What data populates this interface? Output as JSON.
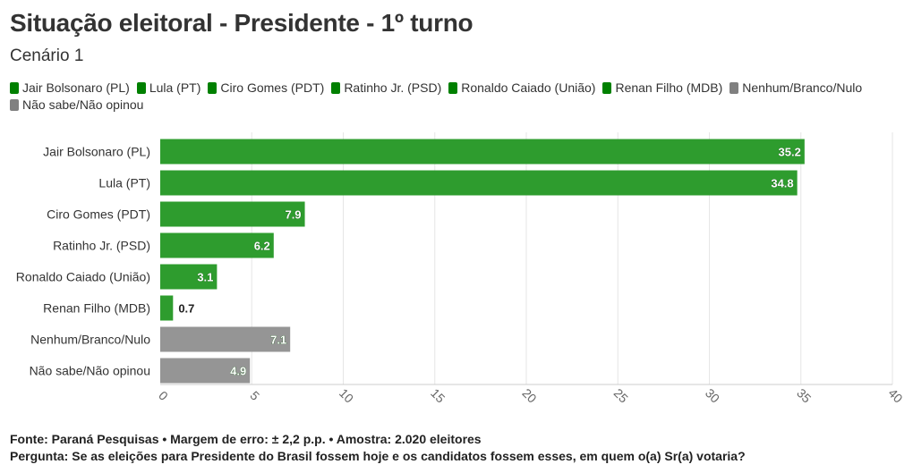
{
  "chart_data": {
    "type": "bar",
    "orientation": "horizontal",
    "title": "Situação eleitoral - Presidente - 1º turno",
    "subtitle": "Cenário 1",
    "categories": [
      "Jair Bolsonaro (PL)",
      "Lula (PT)",
      "Ciro Gomes (PDT)",
      "Ratinho Jr. (PSD)",
      "Ronaldo Caiado (União)",
      "Renan Filho (MDB)",
      "Nenhum/Branco/Nulo",
      "Não sabe/Não opinou"
    ],
    "values": [
      35.2,
      34.8,
      7.9,
      6.2,
      3.1,
      0.7,
      7.1,
      4.9
    ],
    "data_labels": [
      "35.2",
      "34.8",
      "7.9",
      "6.2",
      "3.1",
      "0.7",
      "7.1",
      "4.9"
    ],
    "bar_colors": [
      "#2e9c2e",
      "#2e9c2e",
      "#2e9c2e",
      "#2e9c2e",
      "#2e9c2e",
      "#2e9c2e",
      "#959595",
      "#959595"
    ],
    "legend": [
      {
        "label": "Jair Bolsonaro (PL)",
        "color": "#008000"
      },
      {
        "label": "Lula (PT)",
        "color": "#008000"
      },
      {
        "label": "Ciro Gomes (PDT)",
        "color": "#008000"
      },
      {
        "label": "Ratinho Jr. (PSD)",
        "color": "#008000"
      },
      {
        "label": "Ronaldo Caiado (União)",
        "color": "#008000"
      },
      {
        "label": "Renan Filho (MDB)",
        "color": "#008000"
      },
      {
        "label": "Nenhum/Branco/Nulo",
        "color": "#808080"
      },
      {
        "label": "Não sabe/Não opinou",
        "color": "#808080"
      }
    ],
    "legend_position": "top-left",
    "xlim": [
      0,
      40
    ],
    "xticks": [
      "0",
      "5",
      "10",
      "15",
      "20",
      "25",
      "30",
      "35",
      "40"
    ],
    "grid": true
  },
  "footer": {
    "source": "Fonte: Paraná Pesquisas • Margem de erro: ± 2,2 p.p. • Amostra: 2.020 eleitores",
    "question": "Pergunta: Se as eleições para Presidente do Brasil fossem hoje e os candidatos fossem esses, em quem o(a) Sr(a) votaria?"
  }
}
